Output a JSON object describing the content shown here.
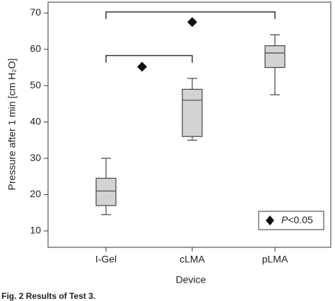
{
  "chart_data": {
    "type": "box",
    "xlabel": "Device",
    "ylabel": "Pressure after 1 min [cm H₂O]",
    "categories": [
      "I-Gel",
      "cLMA",
      "pLMA"
    ],
    "boxes": [
      {
        "whisker_low": 14.5,
        "q1": 17,
        "median": 21,
        "q3": 24.5,
        "whisker_high": 30
      },
      {
        "whisker_low": 35,
        "q1": 36,
        "median": 46,
        "q3": 49,
        "whisker_high": 52
      },
      {
        "whisker_low": 47.5,
        "q1": 55,
        "median": 59,
        "q3": 61,
        "whisker_high": 64
      }
    ],
    "color": "#d3d3d3",
    "ylim": [
      5.5,
      73
    ],
    "yticks": [
      10,
      20,
      30,
      40,
      50,
      60,
      70
    ],
    "significance": [
      {
        "from": 0,
        "to": 2,
        "bracket": 70.3,
        "marker": 67.5
      },
      {
        "from": 0,
        "to": 1,
        "bracket": 58.3,
        "marker": 55.2
      }
    ],
    "legend": {
      "text": [
        "P",
        "<0.05"
      ],
      "position": "lower right"
    },
    "caption": "Fig. 2 Results of Test 3."
  }
}
